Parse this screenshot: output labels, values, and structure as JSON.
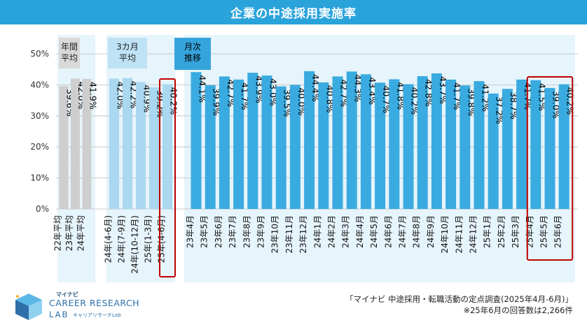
{
  "title": "企業の中途採用実施率",
  "groups": [
    {
      "label_line1": "年間",
      "label_line2": "平均",
      "color": "#d3d3d3",
      "label_bg": "#d9d9d9"
    },
    {
      "label_line1": "3カ月",
      "label_line2": "平均",
      "color": "#a9d8f0",
      "label_bg": "#bfe3f5"
    },
    {
      "label_line1": "月次",
      "label_line2": "推移",
      "color": "#3aabe0",
      "label_bg": "#35a4dc"
    }
  ],
  "colors": {
    "title_bg": "#2aa3db",
    "panel_bg": "#e6f4fb",
    "highlight": "#c00000"
  },
  "chart_data": {
    "type": "bar",
    "ylim": [
      0,
      50
    ],
    "yticks": [
      "0%",
      "10%",
      "20%",
      "30%",
      "40%",
      "50%"
    ],
    "series": [
      {
        "group": 0,
        "categories": [
          "22年平均",
          "23年平均",
          "24年平均"
        ],
        "values": [
          39.6,
          42.0,
          41.9
        ],
        "labels": [
          "39.6%",
          "42.0%",
          "41.9%"
        ]
      },
      {
        "group": 1,
        "categories": [
          "24年(4-6月)",
          "24年(7-9月)",
          "24年(10-12月)",
          "25年(1-3月)",
          "25年(4-6月)"
        ],
        "values": [
          42.0,
          42.2,
          40.9,
          39.2,
          40.2
        ],
        "labels": [
          "42.0%",
          "42.2%",
          "40.9%",
          "39.2%",
          "40.2%"
        ]
      },
      {
        "group": 2,
        "categories": [
          "23年4月",
          "23年5月",
          "23年6月",
          "23年7月",
          "23年8月",
          "23年9月",
          "23年10月",
          "23年11月",
          "23年12月",
          "24年1月",
          "24年2月",
          "24年3月",
          "24年4月",
          "24年5月",
          "24年6月",
          "24年7月",
          "24年8月",
          "24年9月",
          "24年10月",
          "24年11月",
          "24年12月",
          "25年1月",
          "25年2月",
          "25年3月",
          "25年4月",
          "25年5月",
          "25年6月"
        ],
        "values": [
          44.1,
          39.9,
          42.7,
          41.7,
          43.9,
          43.0,
          39.5,
          40.0,
          44.4,
          40.8,
          42.7,
          44.3,
          43.4,
          40.7,
          41.8,
          40.2,
          42.8,
          43.7,
          41.7,
          39.8,
          41.2,
          37.2,
          38.7,
          41.7,
          41.5,
          39.0,
          40.2
        ],
        "labels": [
          "44.1%",
          "39.9%",
          "42.7%",
          "41.7%",
          "43.9%",
          "43.0%",
          "39.5%",
          "40.0%",
          "44.4%",
          "40.8%",
          "42.7%",
          "44.3%",
          "43.4%",
          "40.7%",
          "41.8%",
          "40.2%",
          "42.8%",
          "43.7%",
          "41.7%",
          "39.8%",
          "41.2%",
          "37.2%",
          "38.7%",
          "41.7%",
          "41.5%",
          "39.0%",
          "40.2%"
        ]
      }
    ]
  },
  "footer": {
    "logo_small": "マイナビ",
    "logo_main": "CAREER RESEARCH",
    "logo_lab": "LAB",
    "logo_sub": "キャリアリサーチLab",
    "source_line1": "「マイナビ 中途採用・転職活動の定点調査(2025年4月-6月)」",
    "source_line2": "※25年6月の回答数は2,266件"
  }
}
